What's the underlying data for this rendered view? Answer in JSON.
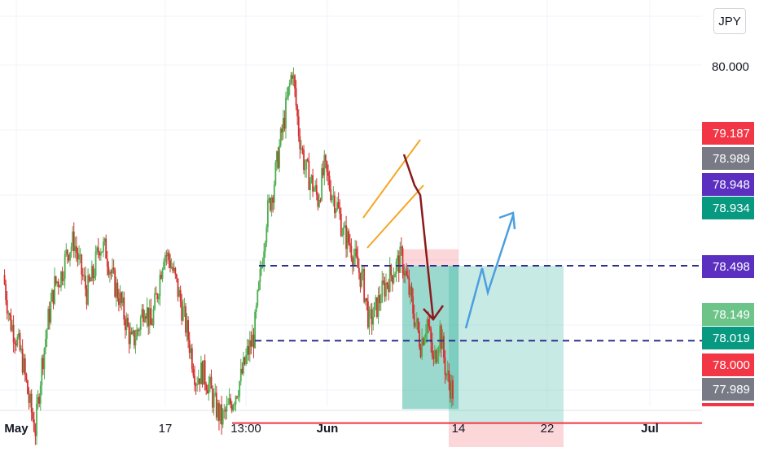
{
  "currency": "JPY",
  "chart_data": {
    "type": "candlestick",
    "ylim": [
      77.88,
      80.48
    ],
    "x_tick_labels": [
      "May",
      "17",
      "13:00",
      "Jun",
      "14",
      "22",
      "Jul"
    ],
    "y_tick_labels": [
      "80.000"
    ],
    "grid": true,
    "price_labels": [
      {
        "text": "79.187",
        "color": "#f23645"
      },
      {
        "text": "78.989",
        "color": "#787b86"
      },
      {
        "text": "78.948",
        "color": "#5b2fbf"
      },
      {
        "text": "78.934",
        "color": "#089981"
      },
      {
        "text": "78.498",
        "color": "#5b2fbf"
      },
      {
        "text": "78.149",
        "color": "#6cc489"
      },
      {
        "text": "78.019",
        "color": "#089981"
      },
      {
        "text": "78.000",
        "color": "#f23645"
      },
      {
        "text": "77.989",
        "color": "#787b86"
      }
    ],
    "levels": [
      {
        "price": 78.934,
        "style": "dashed",
        "color": "#2e2e8f"
      },
      {
        "price": 78.498,
        "style": "dashed",
        "color": "#2e2e8f"
      },
      {
        "price": 78.019,
        "style": "solid",
        "color": "#f23645"
      }
    ],
    "close_path": [
      78.88,
      78.62,
      78.52,
      78.38,
      78.15,
      77.98,
      78.36,
      78.62,
      78.82,
      78.88,
      79.02,
      79.08,
      78.92,
      78.78,
      78.88,
      79.06,
      79.02,
      78.86,
      78.76,
      78.62,
      78.48,
      78.56,
      78.72,
      78.58,
      78.78,
      79.02,
      78.96,
      78.82,
      78.66,
      78.48,
      78.28,
      78.32,
      78.24,
      78.12,
      78.04,
      78.1,
      78.18,
      78.28,
      78.42,
      78.52,
      78.86,
      79.22,
      79.38,
      79.62,
      79.84,
      80.08,
      79.72,
      79.5,
      79.42,
      79.32,
      79.5,
      79.38,
      79.28,
      79.12,
      79.06,
      78.94,
      78.84,
      78.6,
      78.68,
      78.78,
      78.86,
      78.92,
      78.98,
      78.82,
      78.64,
      78.48,
      78.62,
      78.36,
      78.56,
      78.3,
      78.2
    ],
    "color_up": "#4caf50",
    "color_down": "#d32f2f",
    "annotations": {
      "channel_color": "#f5a623",
      "down_arrow_color": "#8b1a1a",
      "up_arrow_color": "#4a9fe0",
      "short_position": {
        "entry": 78.934,
        "stop": 79.03,
        "target": 78.1
      },
      "long_position": {
        "entry": 78.019,
        "stop": 77.84,
        "target": 78.934
      }
    }
  }
}
